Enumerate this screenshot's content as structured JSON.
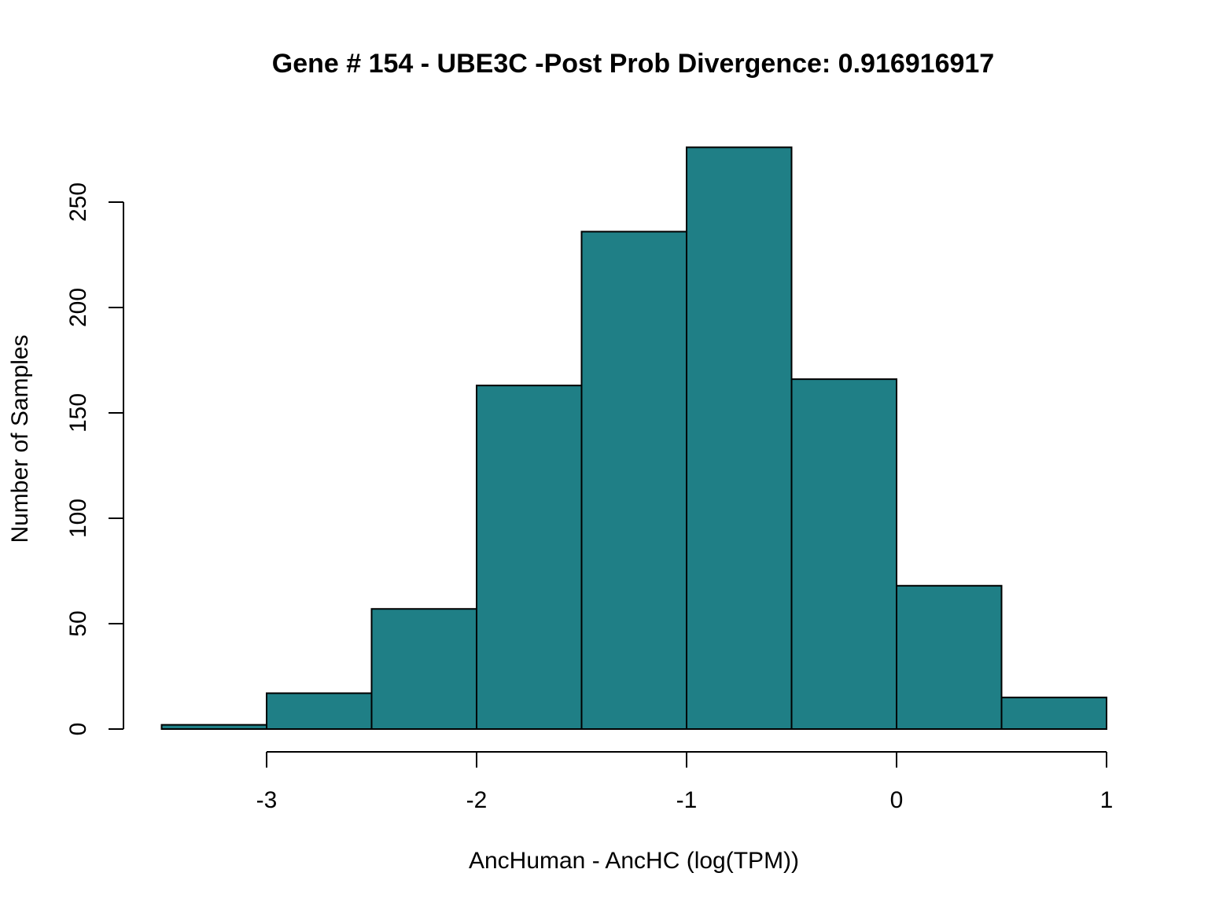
{
  "chart_data": {
    "type": "bar",
    "title": "Gene # 154 - UBE3C -Post Prob Divergence: 0.916916917",
    "xlabel": "AncHuman - AncHC (log(TPM))",
    "ylabel": "Number of Samples",
    "bar_color": "#1f7f86",
    "bins": [
      {
        "x0": -3.5,
        "x1": -3.0,
        "count": 2
      },
      {
        "x0": -3.0,
        "x1": -2.5,
        "count": 17
      },
      {
        "x0": -2.5,
        "x1": -2.0,
        "count": 57
      },
      {
        "x0": -2.0,
        "x1": -1.5,
        "count": 163
      },
      {
        "x0": -1.5,
        "x1": -1.0,
        "count": 236
      },
      {
        "x0": -1.0,
        "x1": -0.5,
        "count": 276
      },
      {
        "x0": -0.5,
        "x1": 0.0,
        "count": 166
      },
      {
        "x0": 0.0,
        "x1": 0.5,
        "count": 68
      },
      {
        "x0": 0.5,
        "x1": 1.0,
        "count": 15
      }
    ],
    "x_ticks": [
      -3,
      -2,
      -1,
      0,
      1
    ],
    "x_tick_labels": [
      "-3",
      "-2",
      "-1",
      "0",
      "1"
    ],
    "y_ticks": [
      0,
      50,
      100,
      150,
      200,
      250
    ],
    "y_tick_labels": [
      "0",
      "50",
      "100",
      "150",
      "200",
      "250"
    ],
    "xlim": [
      -3.5,
      1.0
    ],
    "ylim": [
      0,
      276
    ],
    "grid": false,
    "legend": "none"
  }
}
